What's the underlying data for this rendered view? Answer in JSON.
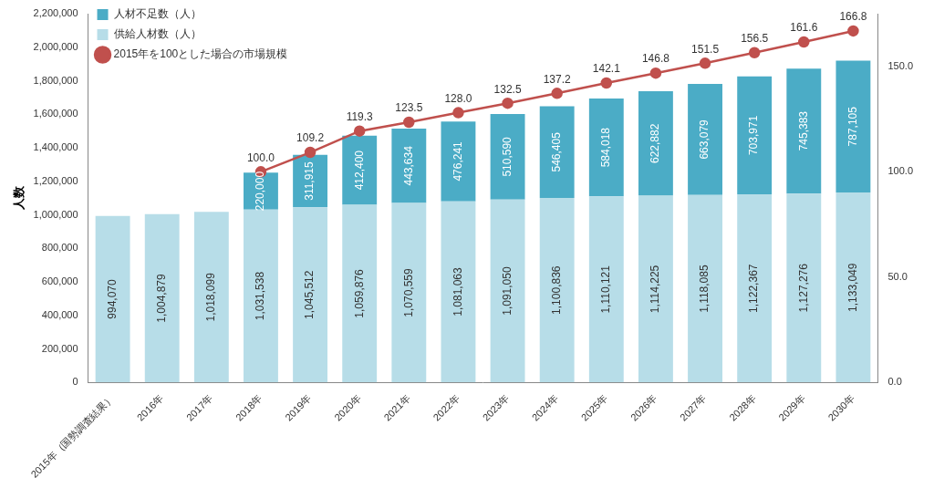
{
  "chart_data": {
    "type": "bar",
    "stacked": true,
    "grid": false,
    "legend": "upper left",
    "data_labels": true,
    "y_label": "人数",
    "categories": [
      "2015年（国勢調査結果）",
      "2016年",
      "2017年",
      "2018年",
      "2019年",
      "2020年",
      "2021年",
      "2022年",
      "2023年",
      "2024年",
      "2025年",
      "2026年",
      "2027年",
      "2028年",
      "2029年",
      "2030年"
    ],
    "series": [
      {
        "name": "人材不足数（人）",
        "type": "bar",
        "color": "#4bacc6",
        "values": [
          null,
          null,
          null,
          220000,
          311915,
          412400,
          443634,
          476241,
          510590,
          546405,
          584018,
          622882,
          663079,
          703971,
          745383,
          787105
        ],
        "value_labels": [
          null,
          null,
          null,
          "220,000",
          "311,915",
          "412,400",
          "443,634",
          "476,241",
          "510,590",
          "546,405",
          "584,018",
          "622,882",
          "663,079",
          "703,971",
          "745,383",
          "787,105"
        ]
      },
      {
        "name": "供給人材数（人）",
        "type": "bar",
        "color": "#b7dde8",
        "values": [
          994070,
          1004879,
          1018099,
          1031538,
          1045512,
          1059876,
          1070559,
          1081063,
          1091050,
          1100836,
          1110121,
          1114225,
          1118085,
          1122367,
          1127276,
          1133049
        ],
        "value_labels": [
          "994,070",
          "1,004,879",
          "1,018,099",
          "1,031,538",
          "1,045,512",
          "1,059,876",
          "1,070,559",
          "1,081,063",
          "1,091,050",
          "1,100,836",
          "1,110,121",
          "1,114,225",
          "1,118,085",
          "1,122,367",
          "1,127,276",
          "1,133,049"
        ]
      },
      {
        "name": "2015年を100とした場合の市場規模",
        "type": "line",
        "axis": "y2",
        "color": "#c0504d",
        "marker": "circle",
        "values": [
          null,
          null,
          null,
          100.0,
          109.2,
          119.3,
          123.5,
          128.0,
          132.5,
          137.2,
          142.1,
          146.8,
          151.5,
          156.5,
          161.6,
          166.8
        ],
        "value_labels": [
          null,
          null,
          null,
          "100.0",
          "109.2",
          "119.3",
          "123.5",
          "128.0",
          "132.5",
          "137.2",
          "142.1",
          "146.8",
          "151.5",
          "156.5",
          "161.6",
          "166.8"
        ]
      }
    ],
    "ylim": [
      0,
      2200000
    ],
    "yticks": [
      0,
      {
        "value": 200000,
        "label": "200,000"
      },
      {
        "value": 400000,
        "label": "400,000"
      },
      {
        "value": 600000,
        "label": "600,000"
      },
      {
        "value": 800000,
        "label": "800,000"
      },
      {
        "value": 1000000,
        "label": "1,000,000"
      },
      {
        "value": 1200000,
        "label": "1,200,000"
      },
      {
        "value": 1400000,
        "label": "1,400,000"
      },
      {
        "value": 1600000,
        "label": "1,600,000"
      },
      {
        "value": 1800000,
        "label": "1,800,000"
      },
      {
        "value": 2000000,
        "label": "2,000,000"
      },
      {
        "value": 2200000,
        "label": "2,200,000"
      }
    ],
    "y2lim": [
      0,
      175
    ],
    "y2ticks": [
      {
        "value": 0,
        "label": "0.0"
      },
      {
        "value": 50,
        "label": "50.0"
      },
      {
        "value": 100,
        "label": "100.0"
      },
      {
        "value": 150,
        "label": "150.0"
      }
    ]
  }
}
